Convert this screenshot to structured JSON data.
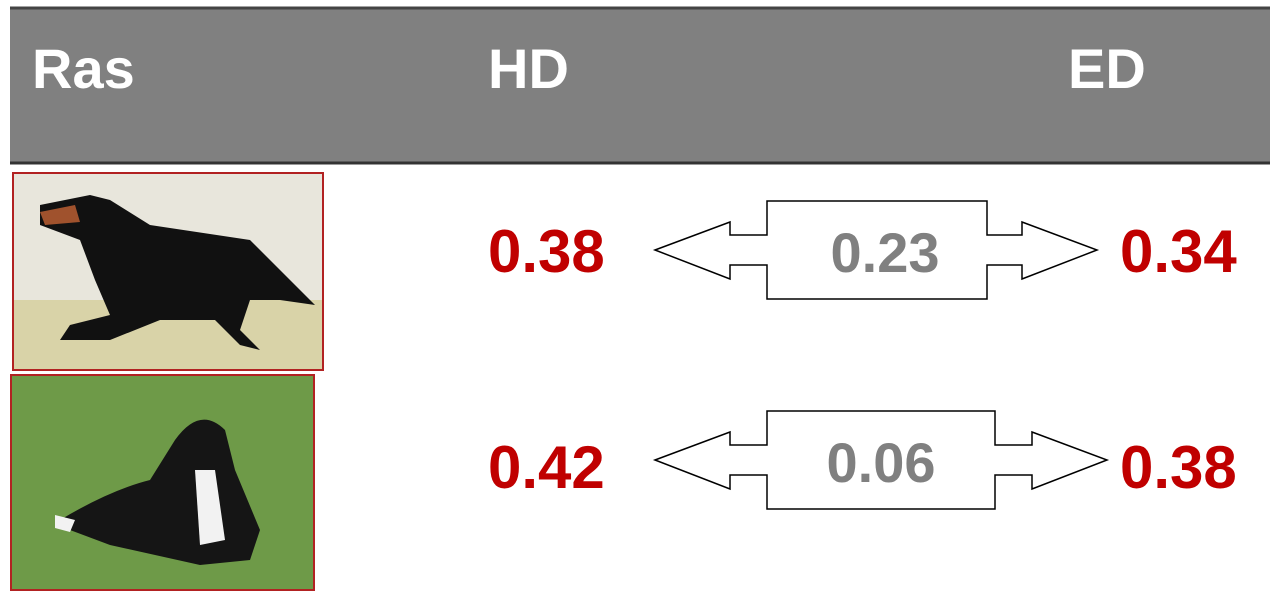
{
  "header": {
    "columns": [
      "Ras",
      "HD",
      "ED"
    ]
  },
  "rows": [
    {
      "hd": 0.38,
      "difference": 0.23,
      "ed": 0.34
    },
    {
      "hd": 0.42,
      "difference": 0.06,
      "ed": 0.38
    }
  ]
}
